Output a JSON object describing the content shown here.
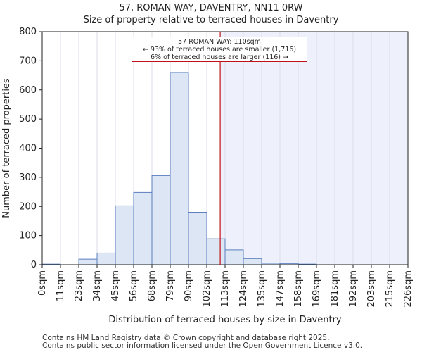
{
  "chart_data": {
    "type": "bar",
    "title": "57, ROMAN WAY, DAVENTRY, NN11 0RW",
    "subtitle": "Size of property relative to terraced houses in Daventry",
    "xlabel": "Distribution of terraced houses by size in Daventry",
    "ylabel": "Number of terraced properties",
    "ylim": [
      0,
      800
    ],
    "yticks": [
      "0",
      "100",
      "200",
      "300",
      "400",
      "500",
      "600",
      "700",
      "800"
    ],
    "x_tick_labels": [
      "0sqm",
      "11sqm",
      "23sqm",
      "34sqm",
      "45sqm",
      "56sqm",
      "68sqm",
      "79sqm",
      "90sqm",
      "102sqm",
      "113sqm",
      "124sqm",
      "135sqm",
      "147sqm",
      "158sqm",
      "169sqm",
      "181sqm",
      "192sqm",
      "203sqm",
      "215sqm",
      "226sqm"
    ],
    "values": [
      2,
      0,
      19,
      40,
      202,
      248,
      306,
      660,
      180,
      89,
      51,
      21,
      5,
      4,
      2,
      0,
      0,
      0,
      0,
      0
    ],
    "property_marker_sqm": 110,
    "bar_color": "#dce6f5",
    "bar_edge_color": "#5b7fbf",
    "marker_color": "#c0111a",
    "shade_color": "#eef1fb",
    "annotation": {
      "line1": "57 ROMAN WAY: 110sqm",
      "line2": "← 93% of terraced houses are smaller (1,716)",
      "line3": "6% of terraced houses are larger (116) →"
    }
  },
  "footer": {
    "line1": "Contains HM Land Registry data © Crown copyright and database right 2025.",
    "line2": "Contains public sector information licensed under the Open Government Licence v3.0."
  }
}
